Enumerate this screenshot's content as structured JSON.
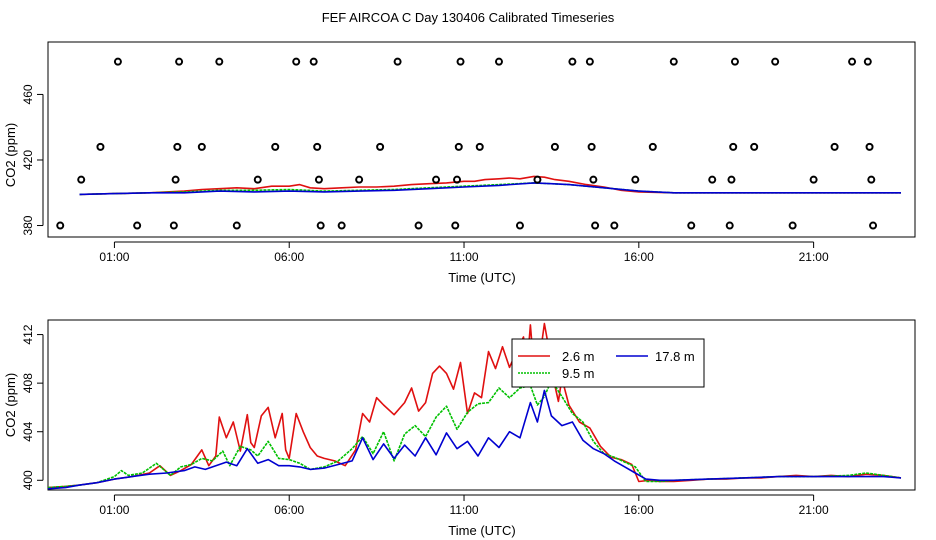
{
  "title": "FEF AIRCOA C  Day 130406  Calibrated Timeseries",
  "colors": {
    "background": "#ffffff",
    "axis": "#000000",
    "series_2_6m": "#e01010",
    "series_9_5m": "#00c000",
    "series_17_8m": "#0000d0"
  },
  "chart_data": [
    {
      "type": "line",
      "title": "",
      "xlabel": "Time (UTC)",
      "ylabel": "CO2 (ppm)",
      "xlim": [
        -0.9,
        23.9
      ],
      "ylim": [
        373,
        492
      ],
      "x_ticks": [
        1,
        6,
        11,
        16,
        21
      ],
      "x_tick_labels": [
        "01:00",
        "06:00",
        "11:00",
        "16:00",
        "21:00"
      ],
      "y_ticks": [
        380,
        420,
        460
      ],
      "y_tick_labels": [
        "380",
        "420",
        "460"
      ],
      "grid": false,
      "legend": "none",
      "series": [
        {
          "color": "#e01010",
          "x": [
            0,
            1,
            2,
            3,
            3.5,
            4,
            4.5,
            5,
            5.5,
            6,
            6.3,
            6.6,
            7,
            7.5,
            8,
            8.5,
            9,
            9.5,
            10,
            10.5,
            11,
            11.3,
            11.6,
            12,
            12.3,
            12.6,
            13,
            13.3,
            13.6,
            14,
            14.5,
            15,
            15.5,
            16,
            17,
            18,
            19,
            20,
            21,
            22,
            23,
            23.5
          ],
          "y": [
            399,
            399.5,
            400,
            401,
            402,
            402.5,
            403,
            402.5,
            404,
            404,
            405,
            403,
            402.5,
            403,
            403.5,
            403.5,
            404,
            405,
            405.5,
            406,
            407,
            407,
            408,
            408.5,
            409,
            408.5,
            410,
            409.5,
            408,
            407,
            405,
            403.5,
            401.5,
            400.5,
            400,
            400,
            400,
            400,
            400,
            400,
            400,
            400
          ]
        },
        {
          "color": "#00c000",
          "x": [
            0,
            1,
            2,
            3,
            4,
            5,
            6,
            7,
            8,
            9,
            10,
            11,
            12,
            13,
            14,
            15,
            16,
            17,
            18,
            19,
            20,
            21,
            22,
            23,
            23.5
          ],
          "y": [
            399,
            399.5,
            400,
            400.5,
            401.5,
            401.5,
            402,
            401,
            401.5,
            402,
            403,
            404,
            405,
            406,
            405,
            403,
            401,
            400,
            400,
            400,
            400,
            400,
            400,
            400,
            400
          ]
        },
        {
          "color": "#0000d0",
          "x": [
            0,
            1,
            2,
            3,
            4,
            5,
            6,
            7,
            8,
            9,
            10,
            11,
            12,
            13,
            13.5,
            14,
            15,
            16,
            17,
            18,
            19,
            20,
            21,
            22,
            23,
            23.5
          ],
          "y": [
            399,
            399.5,
            400,
            400,
            401,
            400.5,
            401,
            400.5,
            401,
            401.5,
            402.5,
            403.5,
            404.5,
            406,
            405.5,
            405,
            403,
            401,
            400,
            400,
            400,
            400,
            400,
            400,
            400,
            400
          ]
        }
      ],
      "markers": {
        "style": "open-circle",
        "points": [
          {
            "x": -0.55,
            "y": 380
          },
          {
            "x": 0.05,
            "y": 408
          },
          {
            "x": 0.6,
            "y": 428
          },
          {
            "x": 1.1,
            "y": 480
          },
          {
            "x": 1.65,
            "y": 380
          },
          {
            "x": 2.7,
            "y": 380
          },
          {
            "x": 2.75,
            "y": 408
          },
          {
            "x": 2.8,
            "y": 428
          },
          {
            "x": 2.85,
            "y": 480
          },
          {
            "x": 3.5,
            "y": 428
          },
          {
            "x": 4.0,
            "y": 480
          },
          {
            "x": 4.5,
            "y": 380
          },
          {
            "x": 5.1,
            "y": 408
          },
          {
            "x": 5.6,
            "y": 428
          },
          {
            "x": 6.2,
            "y": 480
          },
          {
            "x": 6.7,
            "y": 480
          },
          {
            "x": 6.8,
            "y": 428
          },
          {
            "x": 6.85,
            "y": 408
          },
          {
            "x": 6.9,
            "y": 380
          },
          {
            "x": 7.5,
            "y": 380
          },
          {
            "x": 8.0,
            "y": 408
          },
          {
            "x": 8.6,
            "y": 428
          },
          {
            "x": 9.1,
            "y": 480
          },
          {
            "x": 9.7,
            "y": 380
          },
          {
            "x": 10.2,
            "y": 408
          },
          {
            "x": 10.75,
            "y": 380
          },
          {
            "x": 10.8,
            "y": 408
          },
          {
            "x": 10.85,
            "y": 428
          },
          {
            "x": 10.9,
            "y": 480
          },
          {
            "x": 11.45,
            "y": 428
          },
          {
            "x": 12.0,
            "y": 480
          },
          {
            "x": 12.6,
            "y": 380
          },
          {
            "x": 13.1,
            "y": 408
          },
          {
            "x": 13.6,
            "y": 428
          },
          {
            "x": 14.1,
            "y": 480
          },
          {
            "x": 14.6,
            "y": 480
          },
          {
            "x": 14.65,
            "y": 428
          },
          {
            "x": 14.7,
            "y": 408
          },
          {
            "x": 14.75,
            "y": 380
          },
          {
            "x": 15.3,
            "y": 380
          },
          {
            "x": 15.9,
            "y": 408
          },
          {
            "x": 16.4,
            "y": 428
          },
          {
            "x": 17.0,
            "y": 480
          },
          {
            "x": 17.5,
            "y": 380
          },
          {
            "x": 18.1,
            "y": 408
          },
          {
            "x": 18.6,
            "y": 380
          },
          {
            "x": 18.65,
            "y": 408
          },
          {
            "x": 18.7,
            "y": 428
          },
          {
            "x": 18.75,
            "y": 480
          },
          {
            "x": 19.3,
            "y": 428
          },
          {
            "x": 19.9,
            "y": 480
          },
          {
            "x": 20.4,
            "y": 380
          },
          {
            "x": 21.0,
            "y": 408
          },
          {
            "x": 21.6,
            "y": 428
          },
          {
            "x": 22.1,
            "y": 480
          },
          {
            "x": 22.55,
            "y": 480
          },
          {
            "x": 22.6,
            "y": 428
          },
          {
            "x": 22.65,
            "y": 408
          },
          {
            "x": 22.7,
            "y": 380
          }
        ]
      }
    },
    {
      "type": "line",
      "title": "",
      "xlabel": "Time (UTC)",
      "ylabel": "CO2 (ppm)",
      "xlim": [
        -0.9,
        23.9
      ],
      "ylim": [
        399.2,
        413.2
      ],
      "x_ticks": [
        1,
        6,
        11,
        16,
        21
      ],
      "x_tick_labels": [
        "01:00",
        "06:00",
        "11:00",
        "16:00",
        "21:00"
      ],
      "y_ticks": [
        400,
        404,
        408,
        412
      ],
      "y_tick_labels": [
        "400",
        "404",
        "408",
        "412"
      ],
      "grid": false,
      "legend": "top-center",
      "series": [
        {
          "name": "2.6 m",
          "color": "#e01010",
          "x": [
            -0.9,
            -0.4,
            0,
            0.5,
            1,
            1.5,
            2,
            2.3,
            2.6,
            2.9,
            3.2,
            3.5,
            3.7,
            3.9,
            4.0,
            4.2,
            4.4,
            4.6,
            4.8,
            4.9,
            5.0,
            5.2,
            5.4,
            5.6,
            5.8,
            5.9,
            6.0,
            6.2,
            6.4,
            6.6,
            6.8,
            7.0,
            7.3,
            7.6,
            7.9,
            8.1,
            8.3,
            8.5,
            8.7,
            9.0,
            9.3,
            9.5,
            9.7,
            9.9,
            10.1,
            10.3,
            10.5,
            10.7,
            10.9,
            11.1,
            11.3,
            11.5,
            11.7,
            11.9,
            12.1,
            12.3,
            12.5,
            12.7,
            12.8,
            12.9,
            13.0,
            13.1,
            13.2,
            13.3,
            13.4,
            13.5,
            13.6,
            13.7,
            13.8,
            14.0,
            14.3,
            14.6,
            14.9,
            15.2,
            15.5,
            15.8,
            16.0,
            16.3,
            16.6,
            17,
            17.5,
            18,
            18.5,
            19,
            19.5,
            20,
            20.5,
            21,
            21.5,
            22,
            22.5,
            23,
            23.5
          ],
          "y": [
            399.4,
            399.5,
            399.6,
            399.8,
            400.1,
            400.3,
            400.6,
            401.2,
            400.4,
            400.8,
            401.3,
            402.5,
            401.2,
            402,
            405.2,
            403.5,
            404.8,
            402.4,
            405.4,
            403.1,
            402.7,
            405.3,
            406,
            403.5,
            405.5,
            402.5,
            401.8,
            405.5,
            404,
            402.7,
            402,
            401.8,
            401.6,
            401.2,
            402.5,
            405.5,
            404.8,
            406.8,
            406.2,
            405.4,
            406.4,
            407.6,
            405.7,
            406.4,
            408.8,
            409.4,
            408.8,
            407.5,
            409.7,
            405.5,
            407.2,
            406.8,
            410.6,
            409.2,
            411,
            409.3,
            410.6,
            411.8,
            409.2,
            412.8,
            409.2,
            410.5,
            410.8,
            412.9,
            411.3,
            409.4,
            407.8,
            406.5,
            408.4,
            406.2,
            404.8,
            404.3,
            402.8,
            401.9,
            401.7,
            401.3,
            399.9,
            400,
            399.9,
            399.9,
            400,
            400.1,
            400.1,
            400.2,
            400.2,
            400.3,
            400.4,
            400.3,
            400.4,
            400.3,
            400.5,
            400.4,
            400.2
          ]
        },
        {
          "name": "9.5 m",
          "color": "#00c000",
          "x": [
            -0.9,
            -0.4,
            0,
            0.5,
            1,
            1.2,
            1.4,
            1.8,
            2.2,
            2.6,
            2.9,
            3.2,
            3.5,
            3.8,
            4.1,
            4.3,
            4.6,
            4.9,
            5.1,
            5.4,
            5.7,
            6,
            6.3,
            6.6,
            7,
            7.4,
            7.8,
            8.1,
            8.4,
            8.7,
            9,
            9.3,
            9.6,
            9.9,
            10.2,
            10.5,
            10.8,
            11.1,
            11.4,
            11.7,
            12.0,
            12.3,
            12.6,
            12.9,
            13.1,
            13.3,
            13.5,
            13.8,
            14.1,
            14.4,
            14.7,
            15.0,
            15.3,
            15.6,
            15.9,
            16.2,
            16.6,
            17,
            18,
            19,
            20,
            21,
            22,
            22.5,
            23,
            23.5
          ],
          "y": [
            399.4,
            399.5,
            399.6,
            399.8,
            400.3,
            400.8,
            400.4,
            400.6,
            401.4,
            400.4,
            401.1,
            401.3,
            401.8,
            401.6,
            402.4,
            401.2,
            402.8,
            402.5,
            402,
            403.2,
            401.8,
            401.7,
            401.4,
            400.9,
            401.1,
            401.6,
            402.6,
            403.6,
            402.2,
            404,
            401.6,
            403.8,
            404.5,
            403.6,
            405.2,
            406.1,
            404.2,
            405.6,
            406.3,
            406.4,
            407.6,
            406.8,
            407.6,
            407.8,
            406.2,
            406.9,
            408.2,
            406.9,
            405.5,
            404.8,
            403.2,
            402.2,
            401.9,
            401.5,
            401.1,
            399.9,
            399.9,
            400,
            400.1,
            400.2,
            400.3,
            400.3,
            400.4,
            400.6,
            400.4,
            400.2
          ]
        },
        {
          "name": "17.8 m",
          "color": "#0000d0",
          "x": [
            -0.9,
            -0.4,
            0,
            0.5,
            1,
            1.5,
            2,
            2.5,
            3,
            3.3,
            3.6,
            3.9,
            4.2,
            4.5,
            4.8,
            5.1,
            5.4,
            5.7,
            6,
            6.3,
            6.6,
            7,
            7.4,
            7.8,
            8.1,
            8.4,
            8.7,
            9,
            9.3,
            9.6,
            9.9,
            10.2,
            10.5,
            10.8,
            11.1,
            11.4,
            11.7,
            12,
            12.3,
            12.6,
            12.9,
            13.1,
            13.3,
            13.5,
            13.8,
            14.1,
            14.4,
            14.7,
            15,
            15.3,
            15.6,
            15.9,
            16.2,
            16.6,
            17,
            18,
            19,
            20,
            21,
            22,
            23,
            23.5
          ],
          "y": [
            399.3,
            399.4,
            399.6,
            399.8,
            400.1,
            400.3,
            400.5,
            400.6,
            400.8,
            401.1,
            400.9,
            401.2,
            401.5,
            401.2,
            402.6,
            401.4,
            401.7,
            401.2,
            401.2,
            401.1,
            400.9,
            401,
            401.3,
            401.6,
            403.5,
            401.7,
            403,
            401.8,
            402.9,
            402,
            403.5,
            402.1,
            403.9,
            402.6,
            403.2,
            402,
            403.5,
            402.7,
            404,
            403.5,
            406.4,
            404.8,
            407.4,
            405.3,
            404.5,
            404.8,
            403.3,
            402.6,
            402.2,
            401.6,
            401.1,
            400.6,
            400.1,
            400,
            400,
            400.1,
            400.2,
            400.3,
            400.3,
            400.3,
            400.3,
            400.2
          ]
        }
      ]
    }
  ]
}
